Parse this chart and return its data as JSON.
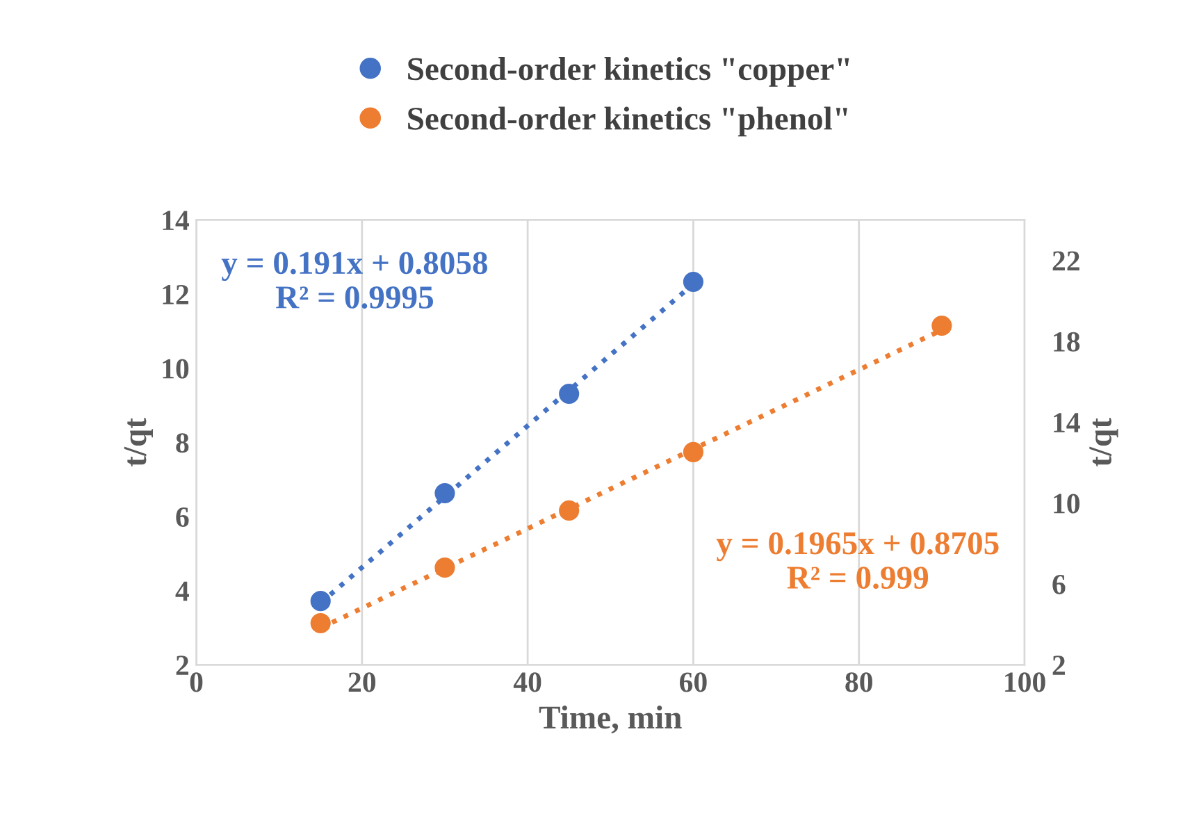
{
  "chart_data": {
    "type": "scatter",
    "xlabel": "Time, min",
    "ylabel": "t/qt",
    "y2label": "t/qt",
    "series": [
      {
        "name": "Second-order kinetics \"copper\"",
        "color": "#4472c4",
        "x": [
          15,
          30,
          45,
          60
        ],
        "values": [
          3.72,
          6.63,
          9.31,
          12.33
        ]
      },
      {
        "name": "Second-order kinetics \"phenol\"",
        "color": "#ed7d31",
        "axis": "y2",
        "x": [
          15,
          30,
          45,
          60,
          90
        ],
        "values": [
          4.06,
          6.81,
          9.63,
          12.52,
          18.77
        ]
      },
      {
        "type": "line",
        "color": "#4472c4",
        "line_style": "dotted",
        "marker": "none",
        "x": [
          15,
          60
        ],
        "values": [
          3.67,
          12.27
        ]
      },
      {
        "type": "line",
        "color": "#ed7d31",
        "line_style": "dotted",
        "marker": "none",
        "axis": "y2",
        "x": [
          15,
          90
        ],
        "values": [
          3.82,
          18.56
        ]
      }
    ],
    "annotations": [
      "y = 0.191x + 0.8058\nR² = 0.9995",
      "y = 0.1965x + 0.8705\nR² = 0.999"
    ],
    "xlim": [
      0,
      100
    ],
    "xticks": [
      0,
      20,
      40,
      60,
      80,
      100
    ],
    "ylim": [
      2,
      14
    ],
    "yticks": [
      2,
      4,
      6,
      8,
      10,
      12,
      14
    ],
    "y2lim": [
      2,
      24
    ],
    "y2ticks": [
      2,
      6,
      10,
      14,
      18,
      22
    ],
    "grid": "x",
    "legend": "top",
    "marker": "circle"
  }
}
